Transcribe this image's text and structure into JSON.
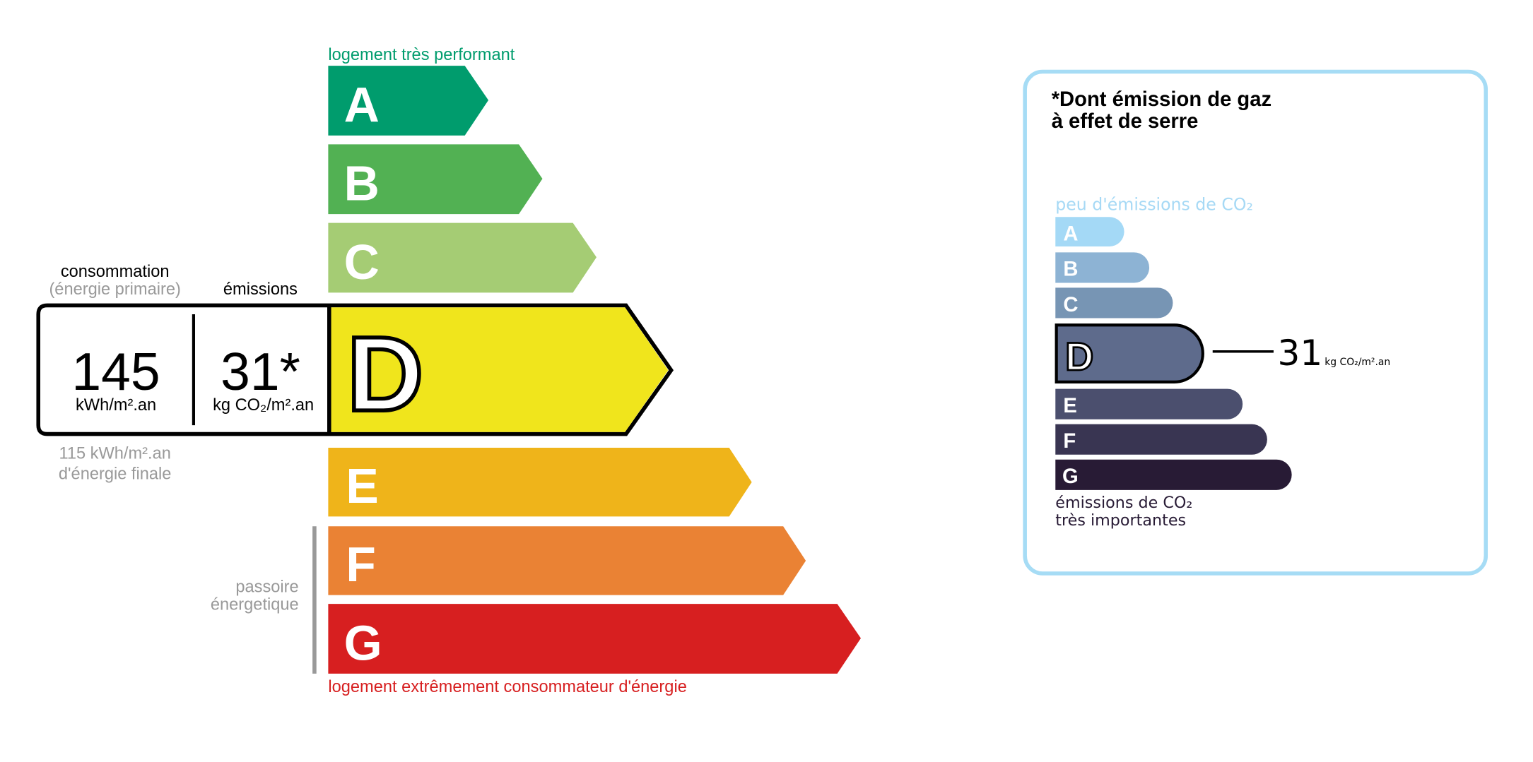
{
  "energy": {
    "top_label": "logement très performant",
    "bottom_label": "logement extrêmement consommateur d'énergie",
    "passoire": [
      "passoire",
      "énergetique"
    ],
    "classes": [
      {
        "letter": "A",
        "color": "#009c6d"
      },
      {
        "letter": "B",
        "color": "#52b153"
      },
      {
        "letter": "C",
        "color": "#a5cc74"
      },
      {
        "letter": "D",
        "color": "#f0e51c"
      },
      {
        "letter": "E",
        "color": "#efb41a"
      },
      {
        "letter": "F",
        "color": "#ea8234"
      },
      {
        "letter": "G",
        "color": "#d71f20"
      }
    ],
    "current_class": "D",
    "consumption_header": "consommation",
    "consumption_subheader": "(énergie primaire)",
    "emissions_header": "émissions",
    "consumption_value": "145",
    "consumption_unit": "kWh/m².an",
    "emissions_value": "31*",
    "emissions_unit": "kg CO₂/m².an",
    "final_energy_value": "115 kWh/m².an",
    "final_energy_label": "d'énergie finale"
  },
  "ges": {
    "title_line1": "*Dont émission de gaz",
    "title_line2": "à effet de serre",
    "top_label": "peu d'émissions de CO₂",
    "bottom_label_line1": "émissions de CO₂",
    "bottom_label_line2": "très importantes",
    "border_color": "#a6dcf5",
    "classes": [
      {
        "letter": "A",
        "color": "#a4d9f6"
      },
      {
        "letter": "B",
        "color": "#8db3d4"
      },
      {
        "letter": "C",
        "color": "#7795b4"
      },
      {
        "letter": "D",
        "color": "#5e6b8c"
      },
      {
        "letter": "E",
        "color": "#4b4f6e"
      },
      {
        "letter": "F",
        "color": "#393552"
      },
      {
        "letter": "G",
        "color": "#281b35"
      }
    ],
    "current_class": "D",
    "value": "31",
    "unit": "kg CO₂/m².an"
  }
}
